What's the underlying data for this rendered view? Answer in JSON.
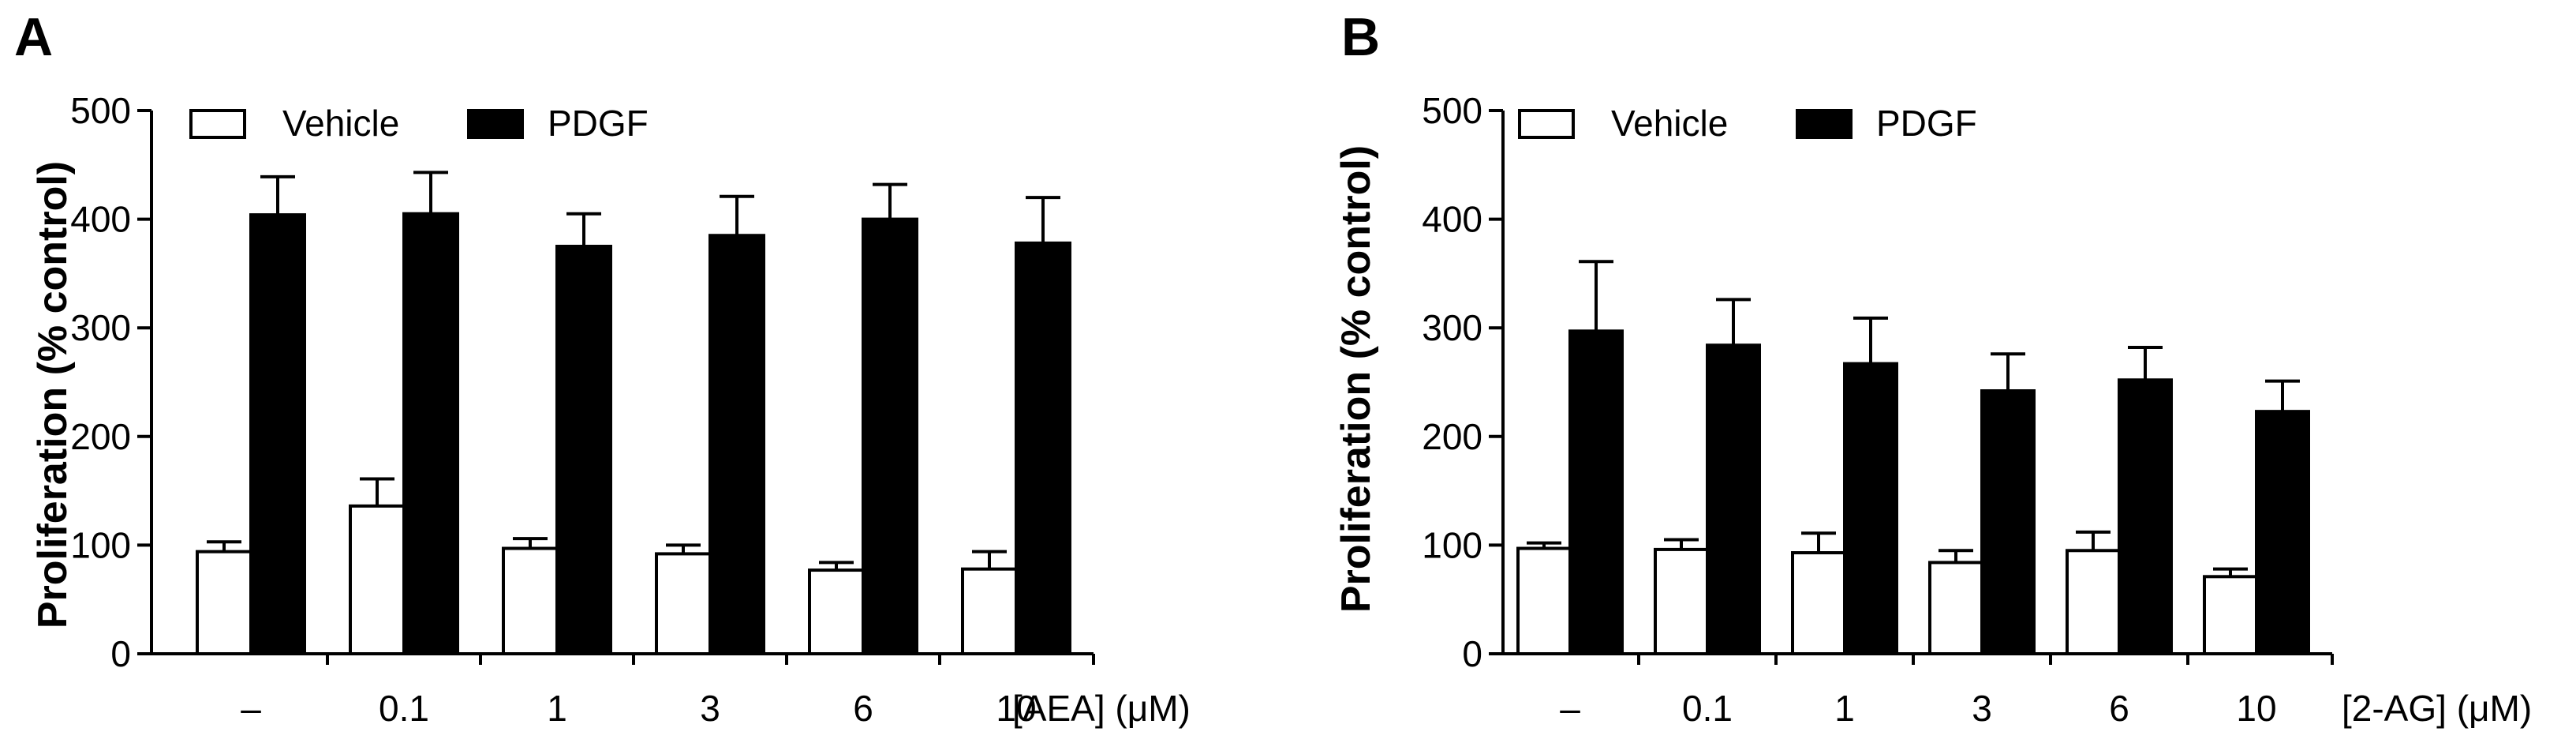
{
  "chart_data": [
    {
      "type": "bar",
      "panel": "A",
      "title": "",
      "categories": [
        "–",
        "0.1",
        "1",
        "3",
        "6",
        "10"
      ],
      "xlabel": "[AEA] (μM)",
      "ylabel": "Proliferation  (% control)",
      "ylim": [
        0,
        500
      ],
      "yticks": [
        "0",
        "100",
        "200",
        "300",
        "400",
        "500"
      ],
      "grid": false,
      "legend_position": "top-left",
      "series": [
        {
          "name": "Vehicle",
          "fill": "#ffffff",
          "values": [
            94,
            136,
            97,
            92,
            77,
            78
          ],
          "errors": [
            9,
            25,
            9,
            8,
            7,
            16
          ]
        },
        {
          "name": "PDGF",
          "fill": "#000000",
          "values": [
            404,
            405,
            375,
            385,
            400,
            378
          ],
          "errors": [
            35,
            38,
            30,
            36,
            32,
            42
          ]
        }
      ]
    },
    {
      "type": "bar",
      "panel": "B",
      "title": "",
      "categories": [
        "–",
        "0.1",
        "1",
        "3",
        "6",
        "10"
      ],
      "xlabel": "[2-AG] (μM)",
      "ylabel": "Proliferation (% control)",
      "ylim": [
        0,
        500
      ],
      "yticks": [
        "0",
        "100",
        "200",
        "300",
        "400",
        "500"
      ],
      "grid": false,
      "legend_position": "top-left",
      "series": [
        {
          "name": "Vehicle",
          "fill": "#ffffff",
          "values": [
            97,
            96,
            93,
            84,
            95,
            71
          ],
          "errors": [
            5,
            9,
            18,
            11,
            17,
            7
          ]
        },
        {
          "name": "PDGF",
          "fill": "#000000",
          "values": [
            297,
            284,
            267,
            242,
            252,
            223
          ],
          "errors": [
            64,
            42,
            42,
            34,
            30,
            28
          ]
        }
      ]
    }
  ]
}
